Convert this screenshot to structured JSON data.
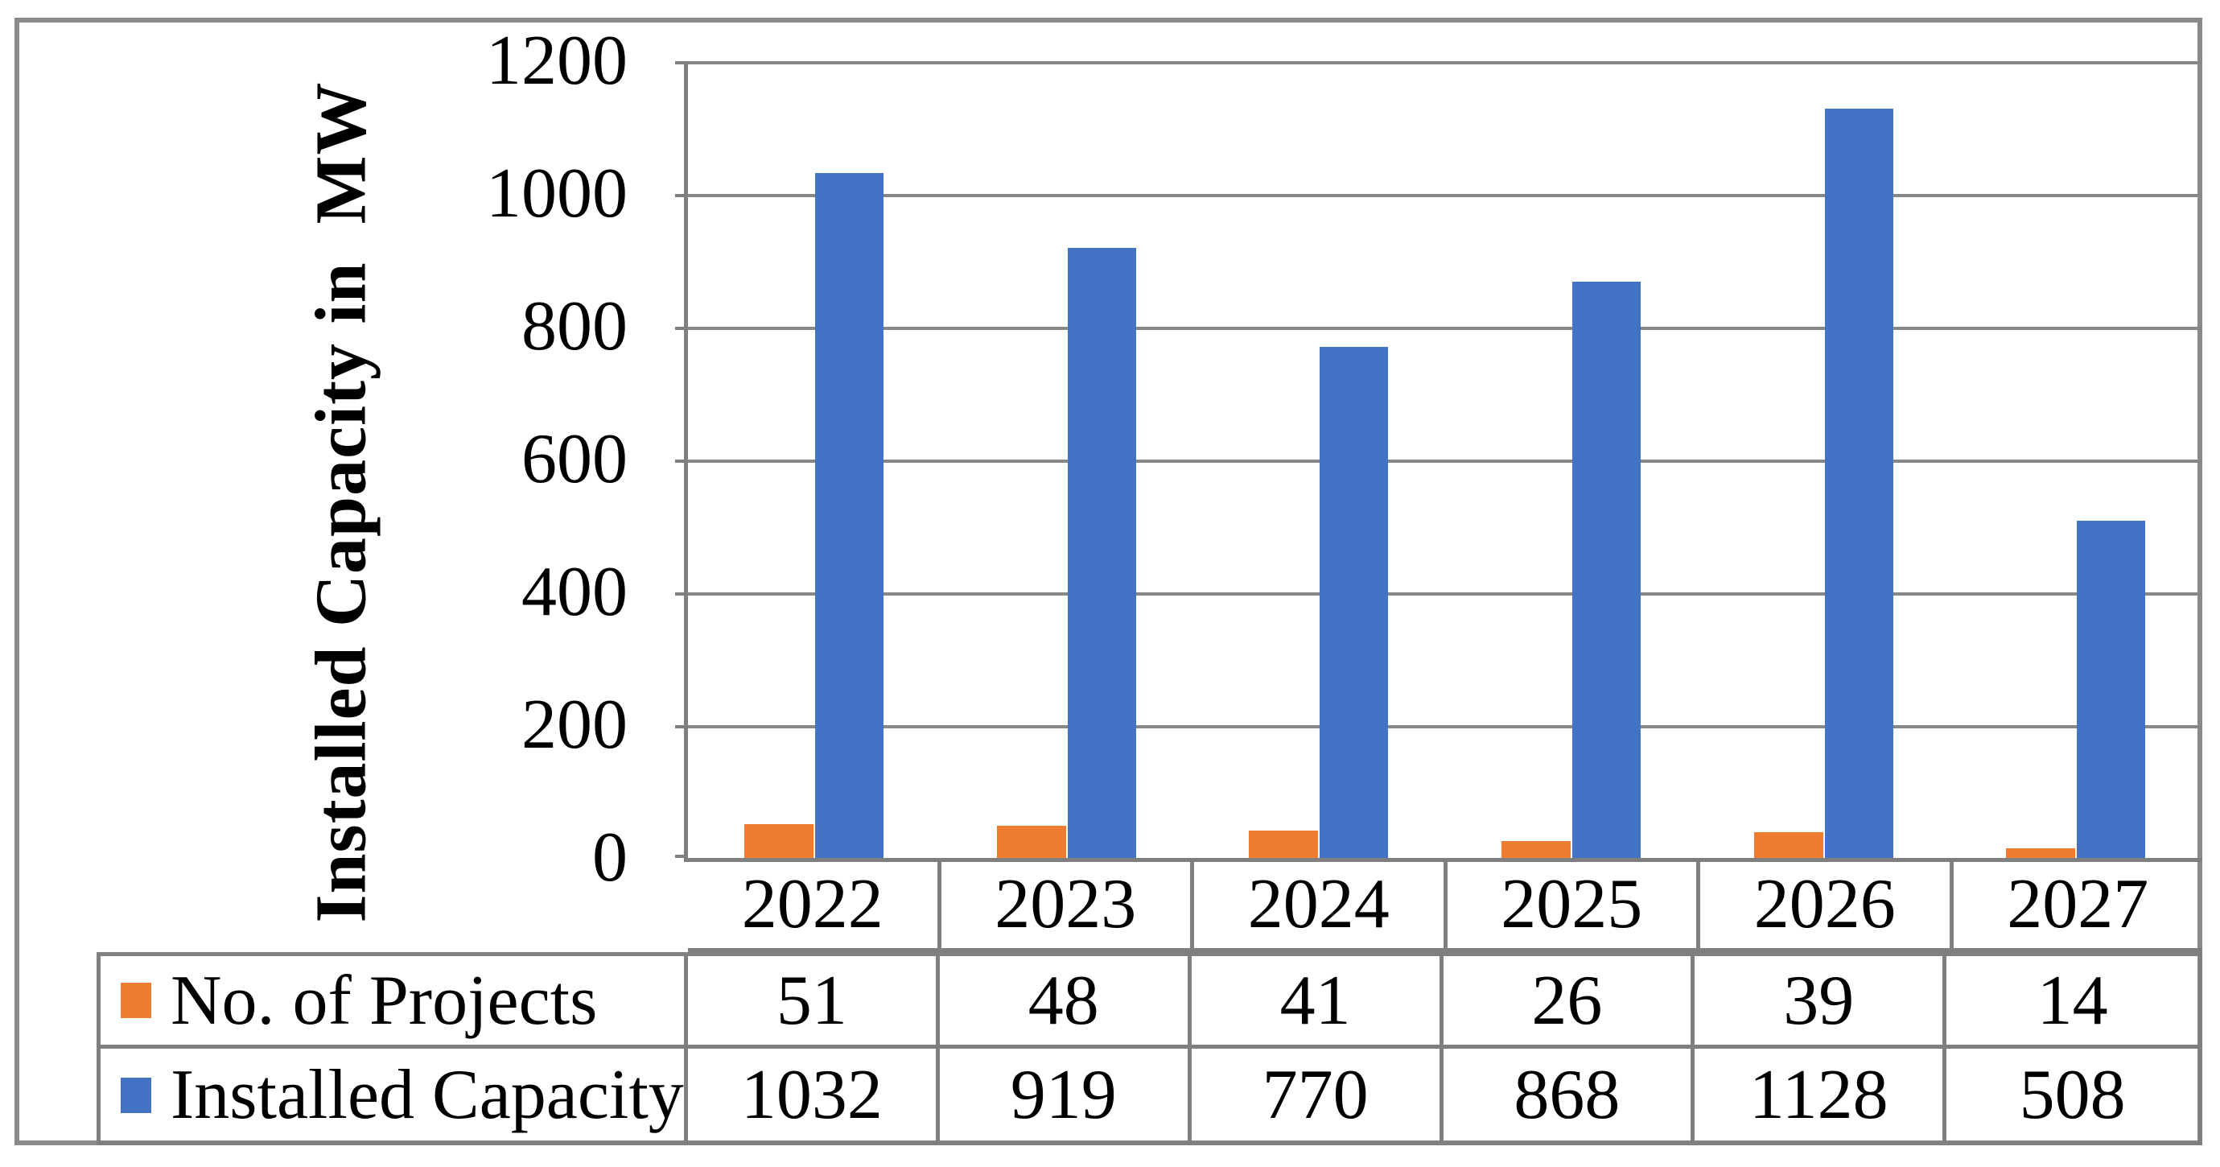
{
  "y_axis": {
    "title": "Installed Capacity in  MW",
    "ticks": [
      "1200",
      "1000",
      "800",
      "600",
      "400",
      "200",
      "0"
    ]
  },
  "chart_data": {
    "type": "bar",
    "title": "",
    "categories": [
      "2022",
      "2023",
      "2024",
      "2025",
      "2026",
      "2027"
    ],
    "series": [
      {
        "name": "No. of Projects",
        "color": "#ED7D31",
        "values": [
          51,
          48,
          41,
          26,
          39,
          14
        ]
      },
      {
        "name": "Installed Capacity",
        "color": "#4472C4",
        "values": [
          1032,
          919,
          770,
          868,
          1128,
          508
        ]
      }
    ],
    "xlabel": "",
    "ylabel": "Installed Capacity in  MW",
    "ylim": [
      0,
      1200
    ],
    "ytick_step": 200,
    "grid": true,
    "legend_position": "table-left-of-data-rows",
    "colors": {
      "gridline": "#878787",
      "border": "#7f7f7f",
      "outer_border": "#8a8a8a"
    }
  }
}
